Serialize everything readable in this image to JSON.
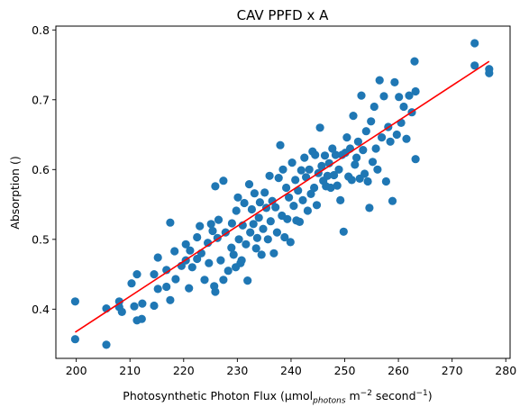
{
  "chart_data": {
    "type": "scatter",
    "title": "CAV PPFD x A",
    "xlabel": {
      "prefix": "Photosynthetic Photon Flux (µmol",
      "sub": "photons",
      "middle": " m",
      "sup1": "−2",
      "after": " second",
      "sup2": "−1",
      "suffix": ")"
    },
    "ylabel": "Absorption ()",
    "xlim": [
      196.2,
      280.8
    ],
    "ylim": [
      0.3295,
      0.8055
    ],
    "xticks": [
      200,
      210,
      220,
      230,
      240,
      250,
      260,
      270,
      280
    ],
    "yticks": [
      0.4,
      0.5,
      0.6,
      0.7,
      0.8
    ],
    "ytick_labels": [
      "0.4",
      "0.5",
      "0.6",
      "0.7",
      "0.8"
    ],
    "grid": false,
    "colors": {
      "points": "#1f77b4",
      "fit": "#ff0000"
    },
    "series": [
      {
        "type": "scatter",
        "points": [
          [
            199.8,
            0.411
          ],
          [
            199.8,
            0.357
          ],
          [
            205.6,
            0.349
          ],
          [
            205.6,
            0.401
          ],
          [
            208.0,
            0.403
          ],
          [
            208.0,
            0.411
          ],
          [
            208.5,
            0.396
          ],
          [
            210.3,
            0.437
          ],
          [
            210.8,
            0.404
          ],
          [
            211.3,
            0.384
          ],
          [
            211.3,
            0.45
          ],
          [
            212.2,
            0.386
          ],
          [
            212.3,
            0.408
          ],
          [
            214.5,
            0.45
          ],
          [
            214.5,
            0.405
          ],
          [
            215.2,
            0.429
          ],
          [
            215.2,
            0.474
          ],
          [
            216.8,
            0.432
          ],
          [
            216.8,
            0.456
          ],
          [
            217.5,
            0.524
          ],
          [
            217.5,
            0.413
          ],
          [
            218.3,
            0.483
          ],
          [
            218.5,
            0.443
          ],
          [
            219.6,
            0.462
          ],
          [
            220.4,
            0.47
          ],
          [
            220.4,
            0.493
          ],
          [
            221.0,
            0.43
          ],
          [
            221.2,
            0.484
          ],
          [
            221.6,
            0.46
          ],
          [
            222.5,
            0.503
          ],
          [
            222.5,
            0.472
          ],
          [
            223.0,
            0.519
          ],
          [
            223.3,
            0.48
          ],
          [
            223.9,
            0.442
          ],
          [
            224.5,
            0.495
          ],
          [
            224.7,
            0.466
          ],
          [
            225.1,
            0.522
          ],
          [
            225.4,
            0.512
          ],
          [
            225.7,
            0.433
          ],
          [
            225.9,
            0.425
          ],
          [
            225.9,
            0.576
          ],
          [
            226.3,
            0.502
          ],
          [
            226.5,
            0.528
          ],
          [
            226.9,
            0.47
          ],
          [
            227.4,
            0.584
          ],
          [
            227.4,
            0.442
          ],
          [
            227.8,
            0.51
          ],
          [
            228.3,
            0.455
          ],
          [
            228.9,
            0.488
          ],
          [
            229.0,
            0.523
          ],
          [
            229.3,
            0.478
          ],
          [
            229.7,
            0.46
          ],
          [
            229.8,
            0.541
          ],
          [
            230.1,
            0.56
          ],
          [
            230.3,
            0.5
          ],
          [
            230.6,
            0.466
          ],
          [
            230.8,
            0.47
          ],
          [
            231.0,
            0.52
          ],
          [
            231.3,
            0.552
          ],
          [
            231.6,
            0.493
          ],
          [
            231.9,
            0.441
          ],
          [
            232.2,
            0.579
          ],
          [
            232.4,
            0.51
          ],
          [
            232.7,
            0.543
          ],
          [
            233.0,
            0.522
          ],
          [
            233.2,
            0.566
          ],
          [
            233.5,
            0.487
          ],
          [
            233.7,
            0.502
          ],
          [
            234.0,
            0.531
          ],
          [
            234.2,
            0.553
          ],
          [
            234.5,
            0.478
          ],
          [
            234.8,
            0.515
          ],
          [
            235.1,
            0.567
          ],
          [
            235.4,
            0.545
          ],
          [
            235.7,
            0.5
          ],
          [
            236.0,
            0.591
          ],
          [
            236.2,
            0.526
          ],
          [
            236.5,
            0.555
          ],
          [
            236.8,
            0.48
          ],
          [
            237.1,
            0.546
          ],
          [
            237.4,
            0.51
          ],
          [
            237.7,
            0.588
          ],
          [
            238.0,
            0.635
          ],
          [
            238.3,
            0.534
          ],
          [
            238.5,
            0.6
          ],
          [
            238.8,
            0.503
          ],
          [
            239.1,
            0.574
          ],
          [
            239.3,
            0.529
          ],
          [
            239.6,
            0.56
          ],
          [
            239.9,
            0.496
          ],
          [
            240.2,
            0.61
          ],
          [
            240.5,
            0.548
          ],
          [
            240.8,
            0.585
          ],
          [
            241.0,
            0.527
          ],
          [
            241.3,
            0.57
          ],
          [
            241.6,
            0.525
          ],
          [
            241.9,
            0.599
          ],
          [
            242.2,
            0.556
          ],
          [
            242.5,
            0.617
          ],
          [
            242.8,
            0.589
          ],
          [
            243.1,
            0.541
          ],
          [
            243.4,
            0.6
          ],
          [
            243.7,
            0.565
          ],
          [
            244.0,
            0.626
          ],
          [
            244.3,
            0.574
          ],
          [
            244.5,
            0.621
          ],
          [
            244.8,
            0.549
          ],
          [
            245.1,
            0.595
          ],
          [
            245.4,
            0.66
          ],
          [
            245.7,
            0.605
          ],
          [
            246.0,
            0.584
          ],
          [
            246.3,
            0.62
          ],
          [
            246.5,
            0.576
          ],
          [
            246.8,
            0.591
          ],
          [
            247.1,
            0.609
          ],
          [
            247.4,
            0.574
          ],
          [
            247.7,
            0.63
          ],
          [
            248.0,
            0.592
          ],
          [
            248.3,
            0.621
          ],
          [
            248.6,
            0.577
          ],
          [
            248.9,
            0.6
          ],
          [
            249.2,
            0.556
          ],
          [
            249.5,
            0.621
          ],
          [
            249.8,
            0.511
          ],
          [
            250.1,
            0.624
          ],
          [
            250.4,
            0.646
          ],
          [
            250.7,
            0.59
          ],
          [
            251.0,
            0.63
          ],
          [
            251.3,
            0.585
          ],
          [
            251.6,
            0.677
          ],
          [
            251.9,
            0.607
          ],
          [
            252.2,
            0.617
          ],
          [
            252.5,
            0.64
          ],
          [
            252.8,
            0.587
          ],
          [
            253.1,
            0.706
          ],
          [
            253.4,
            0.628
          ],
          [
            253.7,
            0.594
          ],
          [
            254.0,
            0.655
          ],
          [
            254.3,
            0.583
          ],
          [
            254.6,
            0.545
          ],
          [
            254.9,
            0.669
          ],
          [
            255.2,
            0.611
          ],
          [
            255.5,
            0.69
          ],
          [
            255.8,
            0.63
          ],
          [
            256.1,
            0.6
          ],
          [
            256.5,
            0.728
          ],
          [
            256.9,
            0.646
          ],
          [
            257.3,
            0.705
          ],
          [
            257.7,
            0.583
          ],
          [
            258.1,
            0.661
          ],
          [
            258.5,
            0.64
          ],
          [
            258.9,
            0.555
          ],
          [
            259.3,
            0.725
          ],
          [
            259.7,
            0.65
          ],
          [
            260.1,
            0.704
          ],
          [
            260.5,
            0.667
          ],
          [
            261.0,
            0.69
          ],
          [
            261.5,
            0.644
          ],
          [
            262.0,
            0.706
          ],
          [
            262.5,
            0.682
          ],
          [
            263.0,
            0.755
          ],
          [
            263.2,
            0.712
          ],
          [
            263.2,
            0.615
          ],
          [
            274.2,
            0.781
          ],
          [
            274.2,
            0.749
          ],
          [
            276.9,
            0.744
          ],
          [
            276.9,
            0.738
          ]
        ]
      },
      {
        "type": "line",
        "points": [
          [
            199.8,
            0.367
          ],
          [
            276.9,
            0.755
          ]
        ]
      }
    ]
  }
}
